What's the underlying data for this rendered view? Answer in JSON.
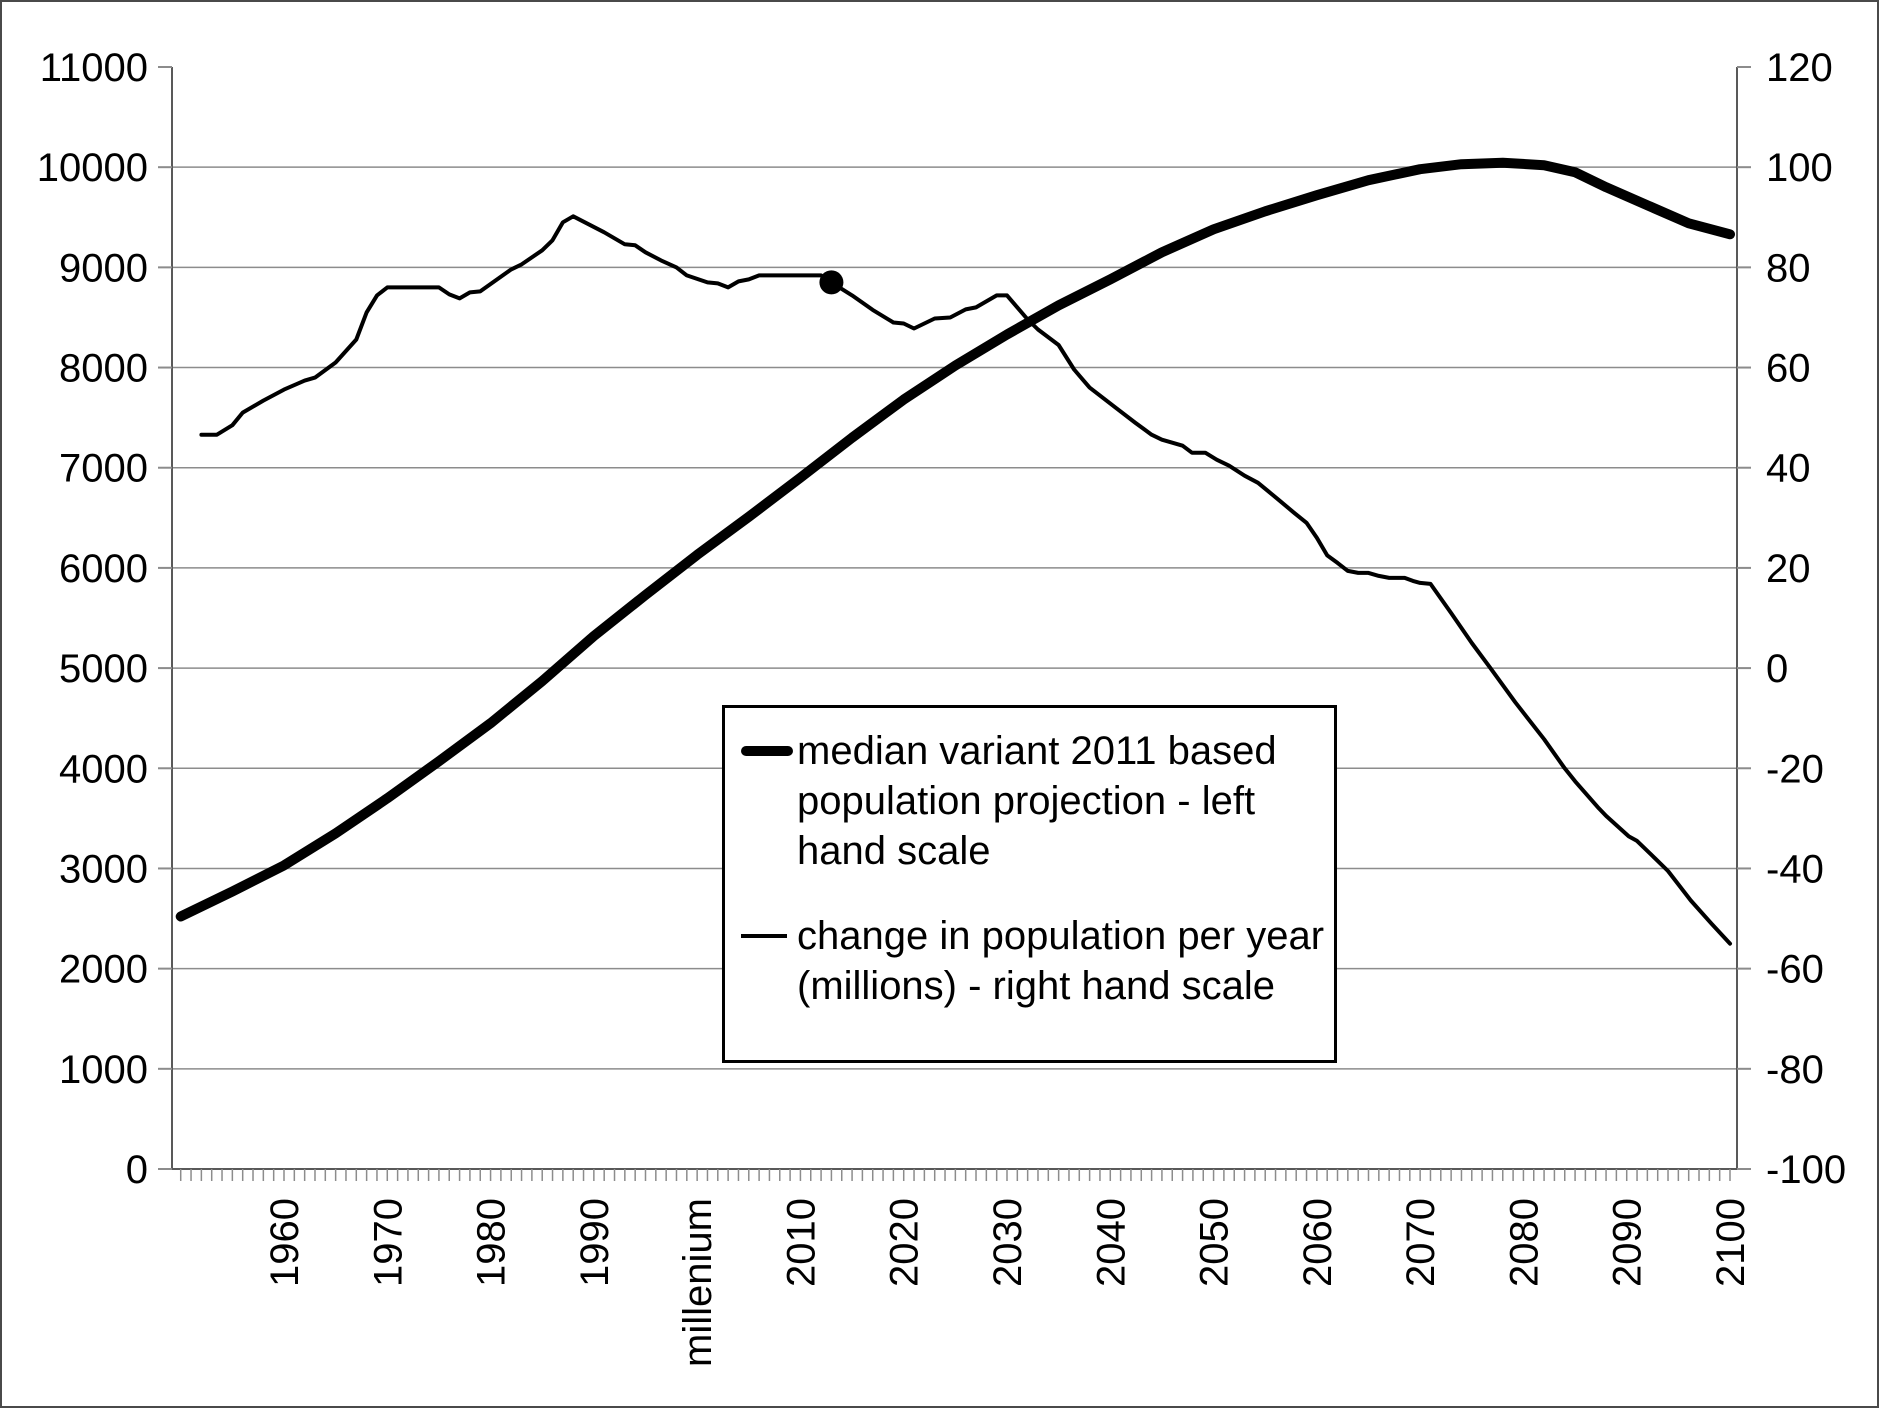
{
  "chart_data": {
    "type": "line",
    "title": "",
    "x_axis": {
      "range_years": [
        1950,
        2100
      ],
      "minor_tick_step_years": 1,
      "tick_values": [
        1960,
        1970,
        1980,
        1990,
        2000,
        2010,
        2020,
        2030,
        2040,
        2050,
        2060,
        2070,
        2080,
        2090,
        2100
      ],
      "tick_labels": [
        "1960",
        "1970",
        "1980",
        "1990",
        "millenium",
        "2010",
        "2020",
        "2030",
        "2040",
        "2050",
        "2060",
        "2070",
        "2080",
        "2090",
        "2100"
      ]
    },
    "left_axis": {
      "range": [
        0,
        11000
      ],
      "step": 1000,
      "tick_labels": [
        "0",
        "1000",
        "2000",
        "3000",
        "4000",
        "5000",
        "6000",
        "7000",
        "8000",
        "9000",
        "10000",
        "11000"
      ]
    },
    "right_axis": {
      "range": [
        -100,
        120
      ],
      "step": 20,
      "tick_labels": [
        "-100",
        "-80",
        "-60",
        "-40",
        "-20",
        "0",
        "20",
        "40",
        "60",
        "80",
        "100",
        "120"
      ]
    },
    "grid": "horizontal-only",
    "legend_position": "boxed-center",
    "series": [
      {
        "name": "median variant 2011 based population projection - left hand scale",
        "axis": "left",
        "style": "thick",
        "stroke_width": 10,
        "points": [
          [
            1950,
            2520
          ],
          [
            1955,
            2770
          ],
          [
            1960,
            3030
          ],
          [
            1965,
            3350
          ],
          [
            1970,
            3700
          ],
          [
            1975,
            4070
          ],
          [
            1980,
            4450
          ],
          [
            1985,
            4870
          ],
          [
            1990,
            5320
          ],
          [
            1995,
            5730
          ],
          [
            2000,
            6130
          ],
          [
            2005,
            6510
          ],
          [
            2010,
            6900
          ],
          [
            2015,
            7300
          ],
          [
            2020,
            7680
          ],
          [
            2025,
            8020
          ],
          [
            2030,
            8330
          ],
          [
            2035,
            8620
          ],
          [
            2040,
            8880
          ],
          [
            2045,
            9150
          ],
          [
            2050,
            9380
          ],
          [
            2055,
            9560
          ],
          [
            2060,
            9720
          ],
          [
            2065,
            9870
          ],
          [
            2070,
            9980
          ],
          [
            2074,
            10030
          ],
          [
            2078,
            10045
          ],
          [
            2082,
            10020
          ],
          [
            2085,
            9950
          ],
          [
            2088,
            9800
          ],
          [
            2092,
            9620
          ],
          [
            2096,
            9440
          ],
          [
            2100,
            9330
          ]
        ]
      },
      {
        "name": "change in population per year (millions) - right hand scale",
        "axis": "right",
        "style": "thin",
        "stroke_width": 4,
        "points": [
          [
            1952,
            46.6
          ],
          [
            1953.5,
            46.6
          ],
          [
            1955,
            48.5
          ],
          [
            1956,
            51
          ],
          [
            1958,
            53.4
          ],
          [
            1960,
            55.6
          ],
          [
            1962,
            57.4
          ],
          [
            1963,
            58
          ],
          [
            1965,
            61
          ],
          [
            1967,
            65.6
          ],
          [
            1968,
            71
          ],
          [
            1969,
            74.4
          ],
          [
            1970,
            76
          ],
          [
            1975,
            76
          ],
          [
            1976,
            74.6
          ],
          [
            1977,
            73.8
          ],
          [
            1978,
            75
          ],
          [
            1979,
            75.2
          ],
          [
            1980.5,
            77.4
          ],
          [
            1982,
            79.6
          ],
          [
            1983,
            80.6
          ],
          [
            1985,
            83.4
          ],
          [
            1986,
            85.4
          ],
          [
            1987,
            89
          ],
          [
            1988,
            90.2
          ],
          [
            1989.5,
            88.6
          ],
          [
            1991,
            87
          ],
          [
            1993,
            84.6
          ],
          [
            1994,
            84.4
          ],
          [
            1995,
            83
          ],
          [
            1996.5,
            81.4
          ],
          [
            1998,
            80
          ],
          [
            1999,
            78.4
          ],
          [
            2001,
            77
          ],
          [
            2002,
            76.8
          ],
          [
            2003,
            76
          ],
          [
            2004,
            77.2
          ],
          [
            2005,
            77.6
          ],
          [
            2006,
            78.4
          ],
          [
            2012,
            78.4
          ],
          [
            2013,
            77
          ],
          [
            2015,
            74.4
          ],
          [
            2017,
            71.5
          ],
          [
            2019,
            69
          ],
          [
            2020,
            68.8
          ],
          [
            2021,
            67.8
          ],
          [
            2023,
            69.8
          ],
          [
            2024.5,
            70
          ],
          [
            2026,
            71.6
          ],
          [
            2027,
            72
          ],
          [
            2029,
            74.4
          ],
          [
            2030,
            74.4
          ],
          [
            2031,
            72
          ],
          [
            2032,
            69.6
          ],
          [
            2033,
            67.6
          ],
          [
            2035,
            64.5
          ],
          [
            2036.5,
            59.6
          ],
          [
            2038,
            56
          ],
          [
            2040.5,
            52
          ],
          [
            2042.4,
            49
          ],
          [
            2044,
            46.6
          ],
          [
            2045,
            45.6
          ],
          [
            2046,
            45
          ],
          [
            2047,
            44.4
          ],
          [
            2047.9,
            43
          ],
          [
            2049.2,
            43
          ],
          [
            2050.3,
            41.6
          ],
          [
            2051.5,
            40.4
          ],
          [
            2053,
            38.4
          ],
          [
            2054.3,
            37
          ],
          [
            2056.3,
            33.6
          ],
          [
            2057.8,
            31
          ],
          [
            2059,
            29
          ],
          [
            2060,
            26
          ],
          [
            2061,
            22.5
          ],
          [
            2062,
            21
          ],
          [
            2063,
            19.4
          ],
          [
            2064,
            19
          ],
          [
            2065,
            19
          ],
          [
            2066,
            18.4
          ],
          [
            2067,
            18
          ],
          [
            2068.5,
            18
          ],
          [
            2069.3,
            17.4
          ],
          [
            2070,
            17
          ],
          [
            2071,
            16.8
          ],
          [
            2073,
            11
          ],
          [
            2075,
            5
          ],
          [
            2076.8,
            0
          ],
          [
            2079.2,
            -6.8
          ],
          [
            2082,
            -14.2
          ],
          [
            2084,
            -20
          ],
          [
            2085,
            -22.6
          ],
          [
            2087.3,
            -28
          ],
          [
            2088,
            -29.5
          ],
          [
            2090.2,
            -33.6
          ],
          [
            2091,
            -34.5
          ],
          [
            2093,
            -38.5
          ],
          [
            2094,
            -40.5
          ],
          [
            2096.2,
            -46.4
          ],
          [
            2098.2,
            -51
          ],
          [
            2100,
            -55
          ]
        ]
      }
    ],
    "marker": {
      "on_series": "change in population per year",
      "year": 2013,
      "value": 77,
      "radius_px": 12
    }
  },
  "legend": {
    "entries": [
      {
        "label": "median variant 2011 based population projection - left hand scale",
        "swatch": "thick"
      },
      {
        "label": "change in population per year (millions) - right hand scale",
        "swatch": "thin"
      }
    ]
  },
  "colors": {
    "line": "#000000",
    "gridline": "#8c8c8c",
    "axis": "#595959",
    "tick": "#8c8c8c",
    "background": "#ffffff",
    "border": "#4a4a4a",
    "legend_border": "#000000",
    "text": "#000000"
  }
}
